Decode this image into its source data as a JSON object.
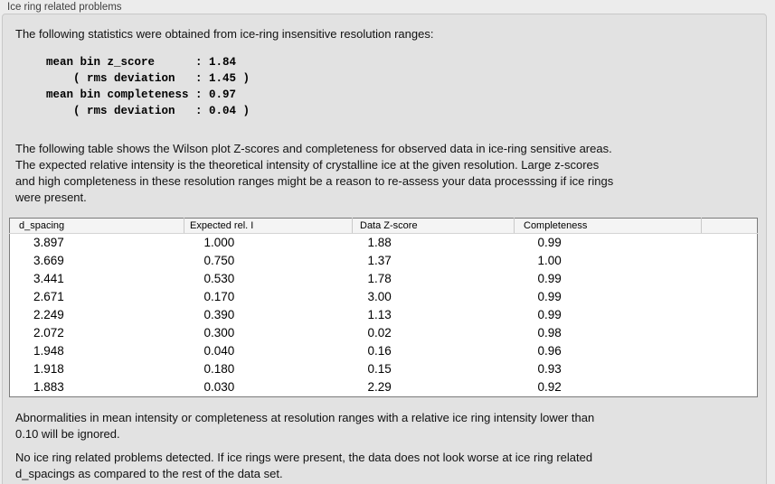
{
  "panel": {
    "title": "Ice ring related problems"
  },
  "intro_text": "The following statistics were obtained from ice-ring insensitive resolution ranges:",
  "stats": {
    "mean_bin_z_score": "1.84",
    "z_score_rms_deviation": "1.45",
    "mean_bin_completeness": "0.97",
    "completeness_rms_deviation": "0.04"
  },
  "stats_block": "mean bin z_score      : 1.84\n    ( rms deviation   : 1.45 )\nmean bin completeness : 0.97\n    ( rms deviation   : 0.04 )",
  "table_description": "The following table shows the Wilson plot Z-scores and completeness for observed data in ice-ring sensitive areas.\nThe expected relative intensity is the theoretical intensity of crystalline ice at the given resolution. Large z-scores\nand high completeness in these resolution ranges might be a reason to re-assess your data processsing if ice rings\nwere present.",
  "table": {
    "columns": [
      "d_spacing",
      "Expected rel. I",
      "Data Z-score",
      "Completeness"
    ],
    "rows": [
      [
        "3.897",
        "1.000",
        "1.88",
        "0.99"
      ],
      [
        "3.669",
        "0.750",
        "1.37",
        "1.00"
      ],
      [
        "3.441",
        "0.530",
        "1.78",
        "0.99"
      ],
      [
        "2.671",
        "0.170",
        "3.00",
        "0.99"
      ],
      [
        "2.249",
        "0.390",
        "1.13",
        "0.99"
      ],
      [
        "2.072",
        "0.300",
        "0.02",
        "0.98"
      ],
      [
        "1.948",
        "0.040",
        "0.16",
        "0.96"
      ],
      [
        "1.918",
        "0.180",
        "0.15",
        "0.93"
      ],
      [
        "1.883",
        "0.030",
        "2.29",
        "0.92"
      ]
    ]
  },
  "footer": {
    "ignore_note": "Abnormalities in mean intensity or completeness at resolution ranges with a relative ice ring intensity lower than\n0.10 will be ignored.",
    "conclusion": "No ice ring related problems detected. If ice rings were present, the data does not look worse at ice ring related\nd_spacings as compared to the rest of the data set."
  },
  "colors": {
    "page_bg": "#ececec",
    "panel_bg": "#e2e2e2",
    "table_header_bg": "#f4f4f4",
    "table_border": "#7b7b7b"
  }
}
